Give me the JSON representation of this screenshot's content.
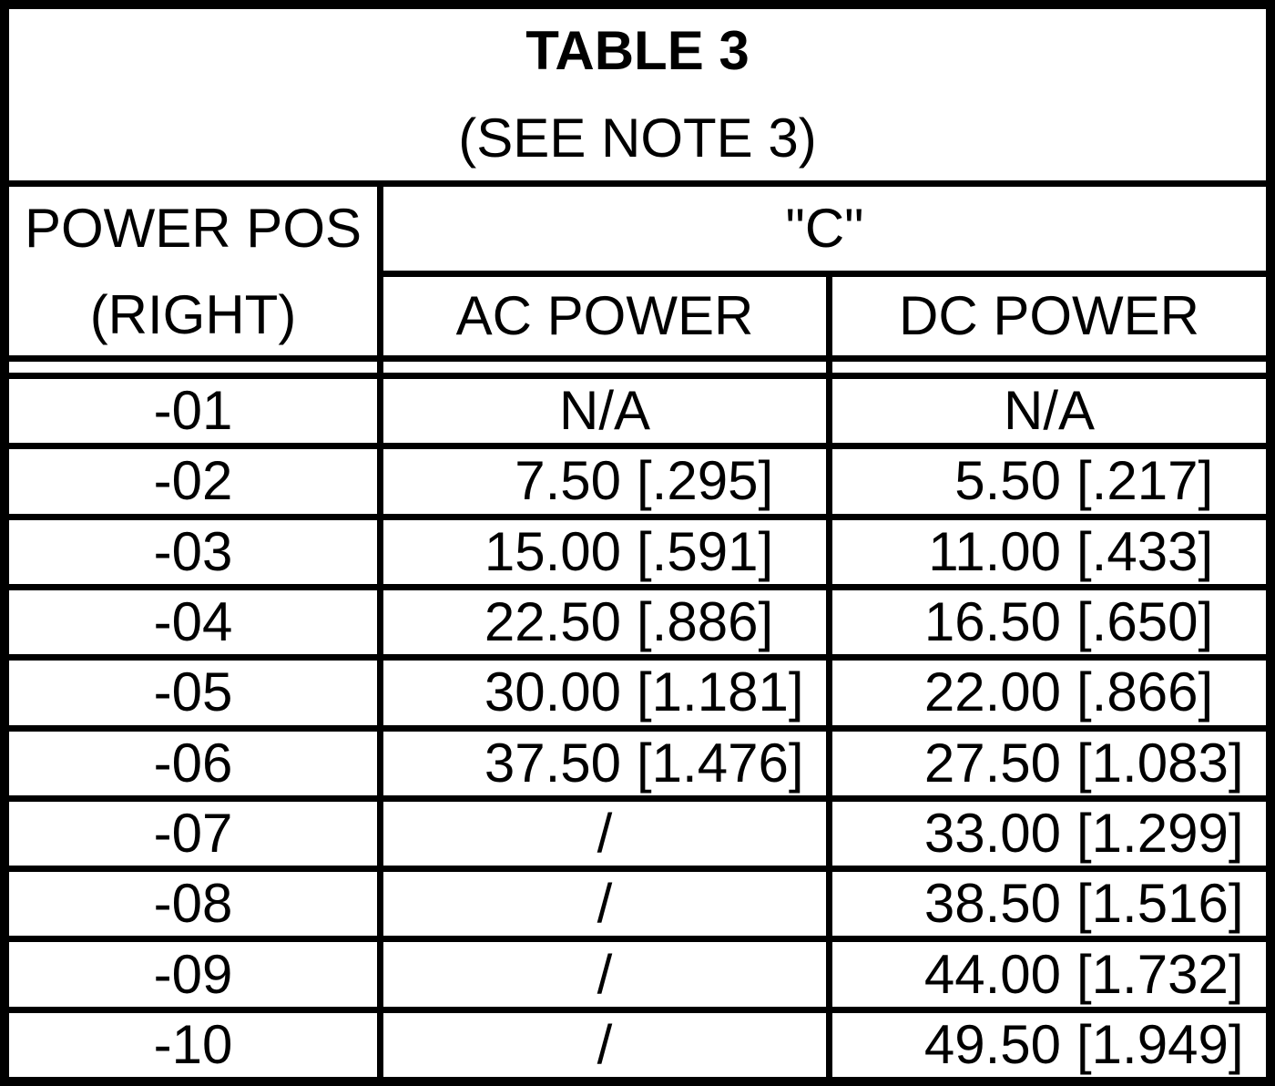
{
  "title": "TABLE 3",
  "subtitle": "(SEE NOTE 3)",
  "header": {
    "row_header_line1": "POWER POS",
    "row_header_line2": "(RIGHT)",
    "group_header": "\"C\"",
    "ac_header": "AC POWER",
    "dc_header": "DC POWER"
  },
  "rows": [
    {
      "pos": "-01",
      "ac": "N/A",
      "dc": "N/A"
    },
    {
      "pos": "-02",
      "ac": "7.50 [.295]",
      "dc": "5.50 [.217]"
    },
    {
      "pos": "-03",
      "ac": "15.00 [.591]",
      "dc": "11.00 [.433]"
    },
    {
      "pos": "-04",
      "ac": "22.50 [.886]",
      "dc": "16.50 [.650]"
    },
    {
      "pos": "-05",
      "ac": "30.00 [1.181]",
      "dc": "22.00 [.866]"
    },
    {
      "pos": "-06",
      "ac": "37.50 [1.476]",
      "dc": "27.50 [1.083]"
    },
    {
      "pos": "-07",
      "ac": "/",
      "dc": "33.00 [1.299]"
    },
    {
      "pos": "-08",
      "ac": "/",
      "dc": "38.50 [1.516]"
    },
    {
      "pos": "-09",
      "ac": "/",
      "dc": "44.00 [1.732]"
    },
    {
      "pos": "-10",
      "ac": "/",
      "dc": "49.50 [1.949]"
    }
  ],
  "colors": {
    "line": "#000000",
    "background": "#ffffff",
    "text": "#000000"
  }
}
